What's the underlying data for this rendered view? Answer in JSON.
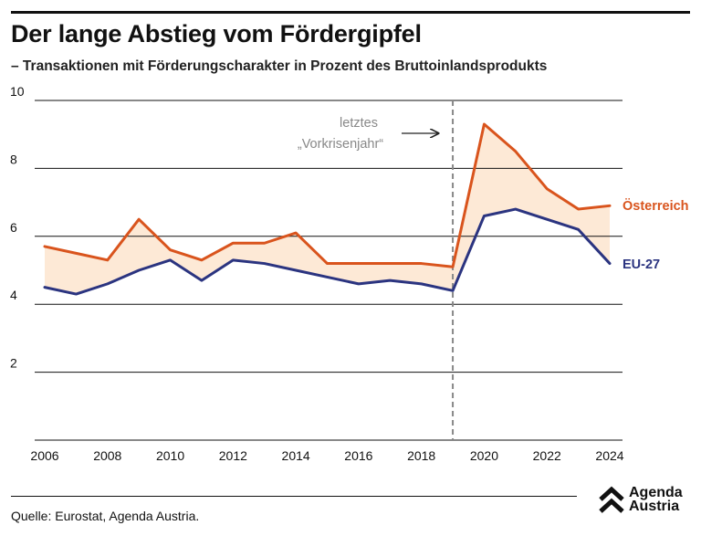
{
  "title": "Der lange Abstieg vom Fördergipfel",
  "subtitle": "– Transaktionen mit Förderungscharakter in Prozent des Bruttoinlandsprodukts",
  "source": "Quelle: Eurostat, Agenda Austria.",
  "logo": {
    "line1": "Agenda",
    "line2": "Austria"
  },
  "colors": {
    "oesterreich": "#d9541d",
    "eu": "#2b3480",
    "fill": "#fde9d6",
    "grid": "#111111",
    "annotation": "#888888"
  },
  "chart_data": {
    "type": "line",
    "title": "Der lange Abstieg vom Fördergipfel",
    "xlabel": "",
    "ylabel": "",
    "x": [
      2006,
      2007,
      2008,
      2009,
      2010,
      2011,
      2012,
      2013,
      2014,
      2015,
      2016,
      2017,
      2018,
      2019,
      2020,
      2021,
      2022,
      2023,
      2024
    ],
    "xlim": [
      2006,
      2024
    ],
    "ylim": [
      0,
      10
    ],
    "xticks": [
      2006,
      2008,
      2010,
      2012,
      2014,
      2016,
      2018,
      2020,
      2022,
      2024
    ],
    "yticks": [
      2,
      4,
      6,
      8,
      10
    ],
    "series": [
      {
        "name": "Österreich",
        "values": [
          5.7,
          5.5,
          5.3,
          6.5,
          5.6,
          5.3,
          5.8,
          5.8,
          6.1,
          5.2,
          5.2,
          5.2,
          5.2,
          5.1,
          9.3,
          8.5,
          7.4,
          6.8,
          6.9
        ]
      },
      {
        "name": "EU-27",
        "values": [
          4.5,
          4.3,
          4.6,
          5.0,
          5.3,
          4.7,
          5.3,
          5.2,
          5.0,
          4.8,
          4.6,
          4.7,
          4.6,
          4.4,
          6.6,
          6.8,
          6.5,
          6.2,
          5.2
        ]
      }
    ],
    "annotation": {
      "x": 2019,
      "line1": "letztes",
      "line2": "„Vorkrisenjahr“"
    }
  }
}
